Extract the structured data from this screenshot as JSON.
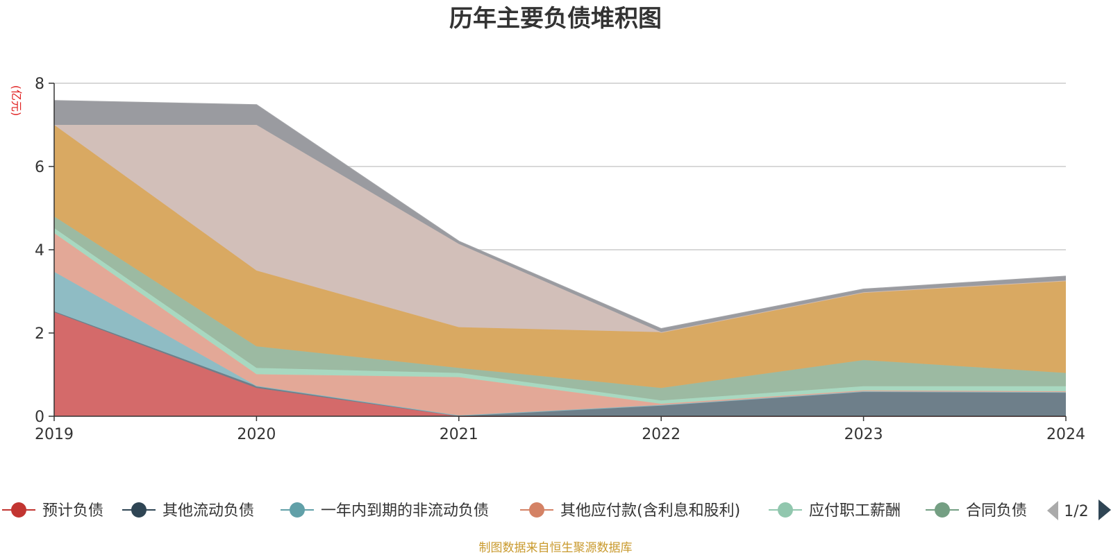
{
  "chart_data": {
    "type": "area",
    "stacked": true,
    "title": "历年主要负债堆积图",
    "unit_label": "(亿元)",
    "x": [
      "2019",
      "2020",
      "2021",
      "2022",
      "2023",
      "2024"
    ],
    "ylim": [
      0,
      8
    ],
    "yticks": [
      "0",
      "2",
      "4",
      "6",
      "8"
    ],
    "grid": true,
    "series": [
      {
        "name": "预计负债",
        "color": "#d46a6a",
        "legend_color": "#c23531",
        "values": [
          2.5,
          0.68,
          0.0,
          0.0,
          0.0,
          0.0
        ]
      },
      {
        "name": "其他流动负债",
        "color": "#6e7f8a",
        "legend_color": "#2f4554",
        "values": [
          0.02,
          0.05,
          0.02,
          0.27,
          0.6,
          0.58
        ]
      },
      {
        "name": "一年内到期的非流动负债",
        "color": "#8fbcc4",
        "legend_color": "#61a0a8",
        "values": [
          0.95,
          0.0,
          0.0,
          0.0,
          0.0,
          0.0
        ]
      },
      {
        "name": "其他应付款(含利息和股利)",
        "color": "#e3a897",
        "legend_color": "#d48265",
        "values": [
          0.93,
          0.28,
          0.92,
          0.03,
          0.02,
          0.02
        ]
      },
      {
        "name": "应付职工薪酬",
        "color": "#a8d8c0",
        "legend_color": "#91c7ae",
        "values": [
          0.12,
          0.15,
          0.1,
          0.08,
          0.1,
          0.12
        ]
      },
      {
        "name": "合同负债",
        "color": "#9cbaa2",
        "legend_color": "#749f83",
        "values": [
          0.28,
          0.52,
          0.12,
          0.3,
          0.63,
          0.32
        ]
      },
      {
        "name": "",
        "color": "#d9a962",
        "legend_color": "#d9a962",
        "values": [
          2.2,
          1.82,
          0.98,
          1.34,
          1.63,
          2.22
        ]
      },
      {
        "name": "",
        "color": "#d2bfb9",
        "legend_color": "#d2bfb9",
        "values": [
          0.0,
          3.5,
          2.0,
          0.0,
          0.0,
          0.0
        ]
      },
      {
        "name": "",
        "color": "#9a9ba0",
        "legend_color": "#9a9ba0",
        "values": [
          0.58,
          0.48,
          0.06,
          0.08,
          0.07,
          0.1
        ]
      }
    ],
    "legend": {
      "placement": "bottom",
      "page": "1/2"
    }
  },
  "source_note": "制图数据来自恒生聚源数据库"
}
